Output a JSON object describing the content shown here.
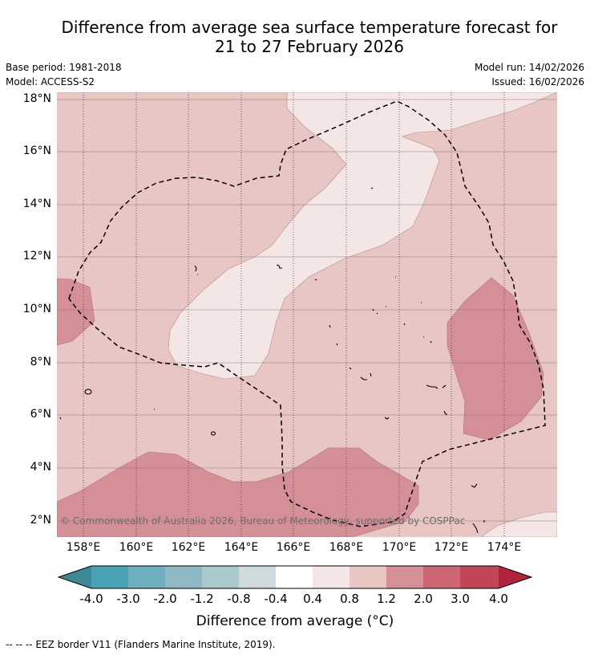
{
  "title_line1": "Difference from average sea surface temperature forecast for",
  "title_line2": "21 to 27 February 2026",
  "base_period": "Base period: 1981-2018",
  "model": "Model: ACCESS-S2",
  "model_run": "Model run: 14/02/2026",
  "issued": "Issued: 16/02/2026",
  "lat_labels": [
    "18°N",
    "16°N",
    "14°N",
    "12°N",
    "10°N",
    "8°N",
    "6°N",
    "4°N",
    "2°N"
  ],
  "lon_labels": [
    "158°E",
    "160°E",
    "162°E",
    "164°E",
    "166°E",
    "168°E",
    "170°E",
    "172°E",
    "174°E"
  ],
  "copyright": "© Commonwealth of Australia 2026, Bureau of Meteorology, supported by COSPPac",
  "colorbar": {
    "tick_labels": [
      "-4.0",
      "-3.0",
      "-2.0",
      "-1.2",
      "-0.8",
      "-0.4",
      "0.4",
      "0.8",
      "1.2",
      "2.0",
      "3.0",
      "4.0"
    ],
    "colors": [
      "#3d8a96",
      "#4aa3b5",
      "#6fb0c0",
      "#8eb9c4",
      "#a9c8cc",
      "#cfdadd",
      "#ffffff",
      "#f4e6e5",
      "#e7c6c3",
      "#d58f97",
      "#cc6674",
      "#c24656",
      "#b2243e"
    ],
    "title": "Difference from average (°C)"
  },
  "legend_text": "--  --  -- EEZ border V11 (Flanders Marine Institute, 2019).",
  "colors": {
    "band_0_4_0_8": "#f4e6e5",
    "band_0_8_1_2": "#e7c6c3",
    "band_1_2_2_0": "#d58f97"
  }
}
